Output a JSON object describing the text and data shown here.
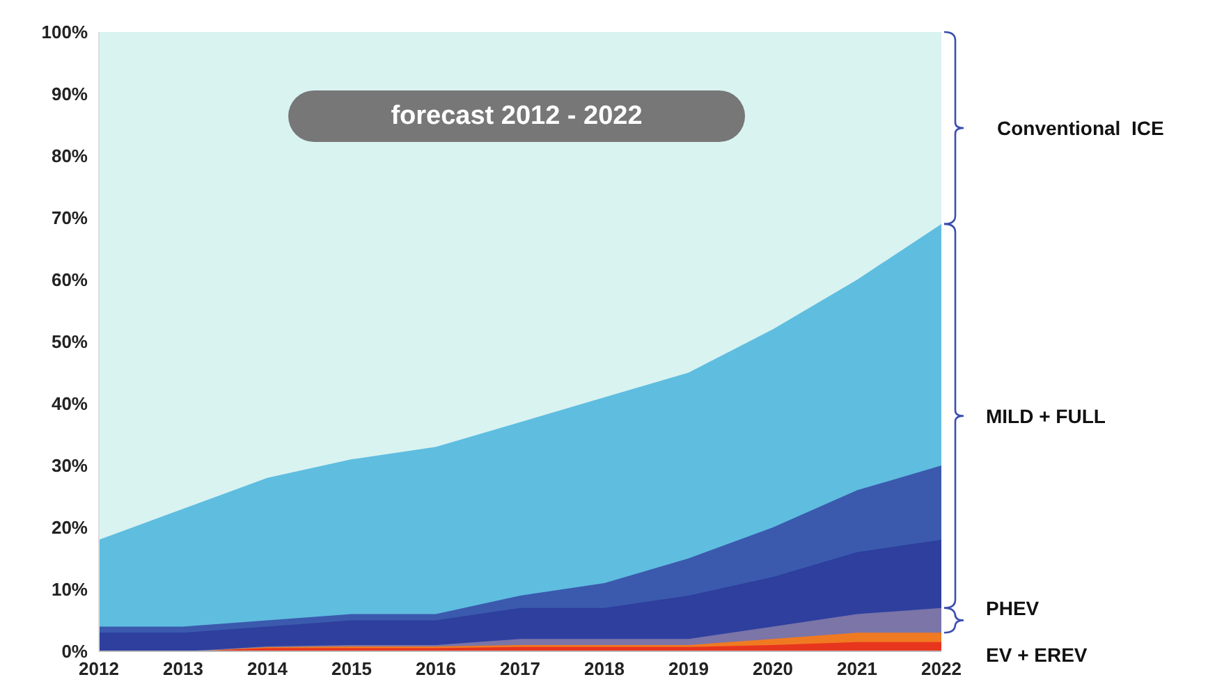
{
  "chart_data": {
    "type": "area",
    "stacked": true,
    "title": "forecast 2012 - 2022",
    "categories": [
      "2012",
      "2013",
      "2014",
      "2015",
      "2016",
      "2017",
      "2018",
      "2019",
      "2020",
      "2021",
      "2022"
    ],
    "series": [
      {
        "color": "#e8351e",
        "values": [
          0,
          0,
          0.5,
          0.5,
          0.5,
          0.7,
          0.7,
          0.7,
          1,
          1.5,
          1.5
        ]
      },
      {
        "color": "#f07a22",
        "values": [
          0,
          0,
          0.2,
          0.3,
          0.3,
          0.3,
          0.3,
          0.3,
          1,
          1.5,
          1.5
        ]
      },
      {
        "color": "#7b75a8",
        "values": [
          0,
          0,
          0.1,
          0.2,
          0.2,
          1,
          1,
          1,
          2,
          3,
          4
        ]
      },
      {
        "color": "#2e3f9e",
        "values": [
          3,
          3,
          3.2,
          4,
          4,
          5,
          5,
          7,
          8,
          10,
          11
        ]
      },
      {
        "color": "#3b5aad",
        "values": [
          1,
          1,
          1,
          1,
          1,
          2,
          4,
          6,
          8,
          10,
          12
        ]
      },
      {
        "color": "#5fbde0",
        "values": [
          14,
          19,
          23,
          25,
          27,
          28,
          30,
          30,
          32,
          34,
          39
        ]
      },
      {
        "color": "#d9f3f1",
        "values": [
          82,
          77,
          72,
          69,
          67,
          63,
          59,
          55,
          48,
          40,
          31
        ]
      }
    ],
    "ylim": [
      0,
      100
    ],
    "yticks": [
      {
        "value": 0,
        "label": "0%"
      },
      {
        "value": 10,
        "label": "10%"
      },
      {
        "value": 20,
        "label": "20%"
      },
      {
        "value": 30,
        "label": "30%"
      },
      {
        "value": 40,
        "label": "40%"
      },
      {
        "value": 50,
        "label": "50%"
      },
      {
        "value": 60,
        "label": "60%"
      },
      {
        "value": 70,
        "label": "70%"
      },
      {
        "value": 80,
        "label": "80%"
      },
      {
        "value": 90,
        "label": "90%"
      },
      {
        "value": 100,
        "label": "100%"
      }
    ],
    "annotations": [
      "Conventional  ICE",
      "MILD + FULL",
      "PHEV",
      "EV + EREV"
    ],
    "grid": false,
    "legend": false
  }
}
